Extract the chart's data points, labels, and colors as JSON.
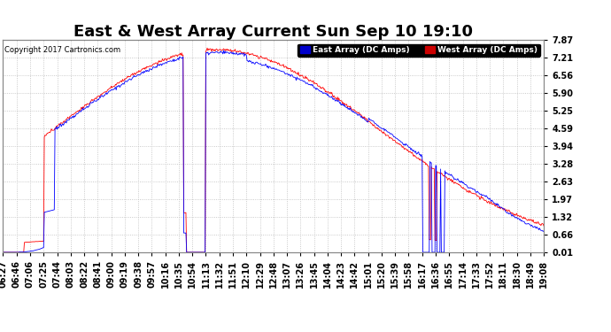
{
  "title": "East & West Array Current Sun Sep 10 19:10",
  "copyright": "Copyright 2017 Cartronics.com",
  "legend_east": "East Array (DC Amps)",
  "legend_west": "West Array (DC Amps)",
  "east_color": "#0000FF",
  "west_color": "#FF0000",
  "legend_east_bg": "#0000CC",
  "legend_west_bg": "#CC0000",
  "background_color": "#FFFFFF",
  "plot_bg_color": "#FFFFFF",
  "grid_color": "#BBBBBB",
  "yticks": [
    0.01,
    0.66,
    1.32,
    1.97,
    2.63,
    3.28,
    3.94,
    4.59,
    5.25,
    5.9,
    6.56,
    7.21,
    7.87
  ],
  "ylim": [
    0.01,
    7.87
  ],
  "title_fontsize": 13,
  "tick_fontsize": 7,
  "x_labels": [
    "06:27",
    "06:46",
    "07:06",
    "07:25",
    "07:44",
    "08:03",
    "08:22",
    "08:41",
    "09:00",
    "09:19",
    "09:38",
    "09:57",
    "10:16",
    "10:35",
    "10:54",
    "11:13",
    "11:32",
    "11:51",
    "12:10",
    "12:29",
    "12:48",
    "13:07",
    "13:26",
    "13:45",
    "14:04",
    "14:23",
    "14:42",
    "15:01",
    "15:20",
    "15:39",
    "15:58",
    "16:17",
    "16:36",
    "16:55",
    "17:14",
    "17:33",
    "17:52",
    "18:11",
    "18:30",
    "18:49",
    "19:08"
  ]
}
